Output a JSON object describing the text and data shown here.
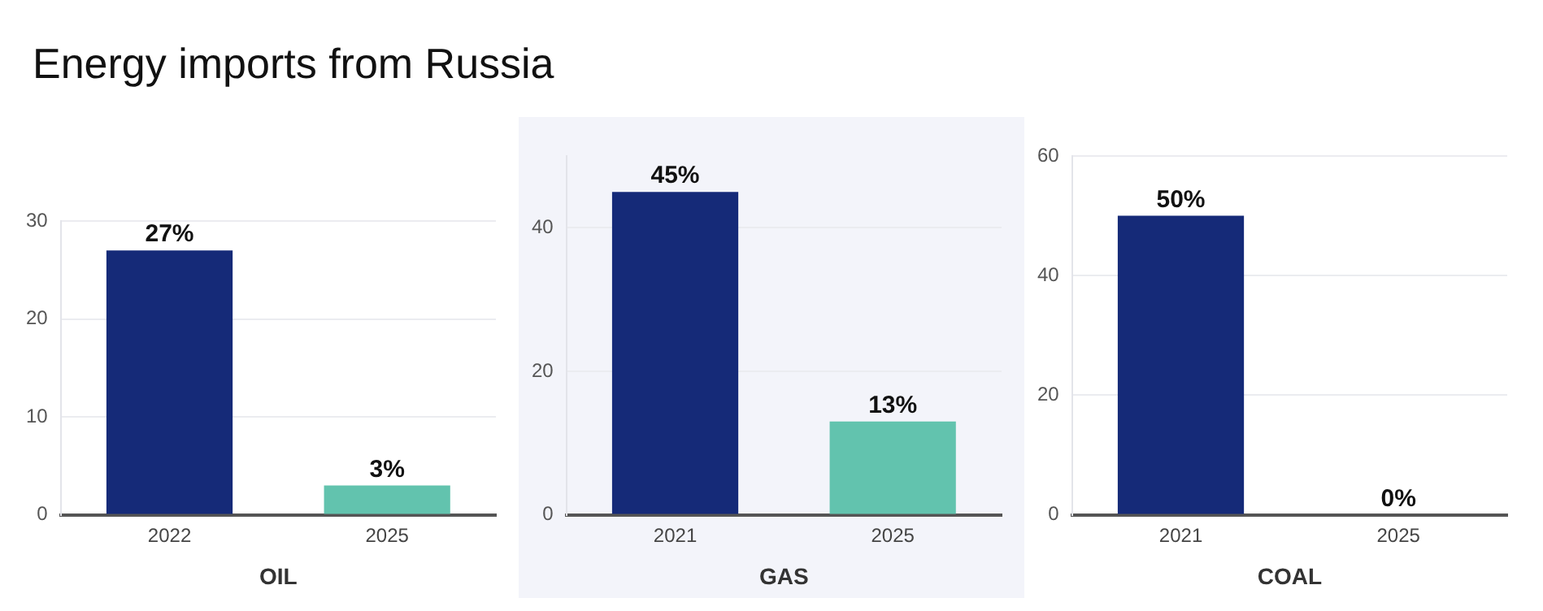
{
  "chart_data": [
    {
      "type": "bar",
      "title": "Energy imports from Russia",
      "xlabel": "OIL",
      "categories": [
        "2022",
        "2025"
      ],
      "values": [
        27,
        3
      ],
      "colors": [
        "#152a78",
        "#62c3ae"
      ],
      "value_labels": [
        "27%",
        "3%"
      ],
      "ylim": [
        0,
        30
      ],
      "yticks": [
        0,
        10,
        20,
        30
      ],
      "grid": "y",
      "legend": false
    },
    {
      "type": "bar",
      "xlabel": "GAS",
      "categories": [
        "2021",
        "2025"
      ],
      "values": [
        45,
        13
      ],
      "colors": [
        "#152a78",
        "#62c3ae"
      ],
      "value_labels": [
        "45%",
        "13%"
      ],
      "ylim": [
        0,
        50
      ],
      "yticks": [
        0,
        20,
        40
      ],
      "grid": "y",
      "legend": false
    },
    {
      "type": "bar",
      "xlabel": "COAL",
      "categories": [
        "2021",
        "2025"
      ],
      "values": [
        50,
        0
      ],
      "colors": [
        "#152a78",
        "#62c3ae"
      ],
      "value_labels": [
        "50%",
        "0%"
      ],
      "ylim": [
        0,
        60
      ],
      "yticks": [
        0,
        20,
        40,
        60
      ],
      "grid": "y",
      "legend": false
    }
  ]
}
